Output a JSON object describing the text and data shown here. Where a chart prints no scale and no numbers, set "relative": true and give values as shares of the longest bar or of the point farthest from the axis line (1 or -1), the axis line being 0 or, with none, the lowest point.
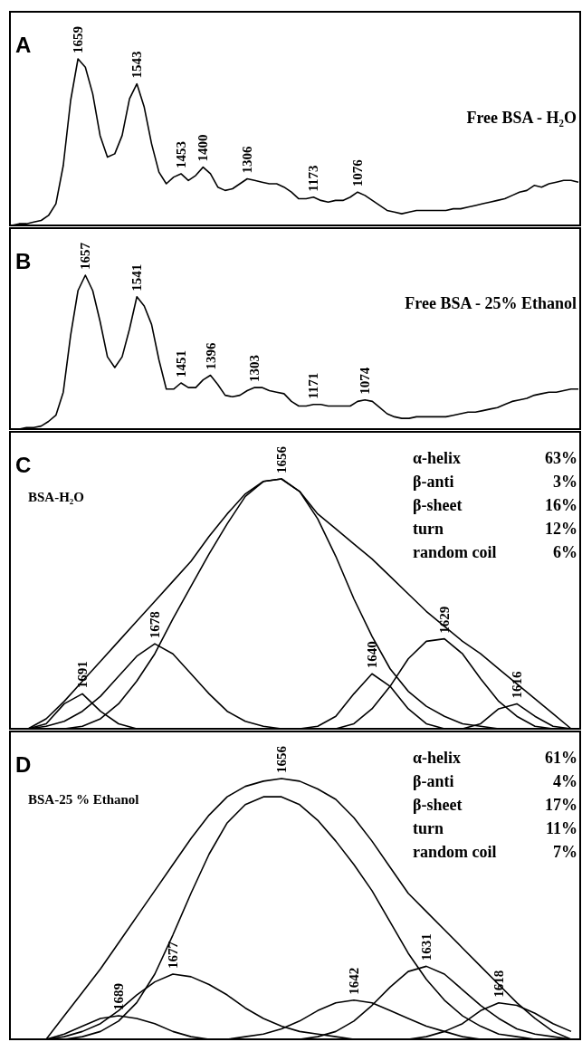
{
  "chart_data": [
    {
      "type": "line",
      "relative": true,
      "tick_labels": false,
      "title": "A",
      "annotations": [
        "Free BSA - H₂O",
        {
          "text": "1659",
          "y": 1.0
        },
        {
          "text": "1543",
          "y": 0.85
        },
        {
          "text": "1453",
          "y": 0.31
        },
        {
          "text": "1400",
          "y": 0.35
        },
        {
          "text": "1306",
          "y": 0.28
        },
        {
          "text": "1173",
          "y": 0.17
        },
        {
          "text": "1076",
          "y": 0.2
        }
      ],
      "categories": [
        null,
        null,
        null,
        null,
        null,
        null,
        null,
        null,
        null,
        null,
        null,
        null,
        null,
        null,
        null,
        null,
        null,
        null,
        null,
        null,
        null,
        null,
        null,
        null,
        null,
        null,
        null,
        null,
        null,
        null,
        null,
        null,
        null,
        null,
        null,
        null,
        null,
        null,
        null,
        null,
        null,
        null,
        null,
        null,
        null,
        null,
        null,
        null,
        null,
        null,
        null,
        null,
        null,
        null,
        null,
        null,
        null,
        null,
        null,
        null,
        null,
        null,
        null,
        null,
        null,
        null,
        null,
        null,
        null,
        null,
        null,
        null,
        null,
        null,
        null,
        null,
        null,
        null
      ],
      "series": [
        {
          "color": "#000000",
          "values": [
            0,
            0.01,
            0.01,
            0.02,
            0.03,
            0.06,
            0.13,
            0.36,
            0.75,
            1.0,
            0.95,
            0.79,
            0.54,
            0.41,
            0.43,
            0.54,
            0.76,
            0.85,
            0.71,
            0.49,
            0.32,
            0.25,
            0.29,
            0.31,
            0.27,
            0.3,
            0.35,
            0.31,
            0.23,
            0.21,
            0.22,
            0.25,
            0.28,
            0.27,
            0.26,
            0.25,
            0.25,
            0.23,
            0.2,
            0.16,
            0.16,
            0.17,
            0.15,
            0.14,
            0.15,
            0.15,
            0.17,
            0.2,
            0.18,
            0.15,
            0.12,
            0.09,
            0.08,
            0.07,
            0.08,
            0.09,
            0.09,
            0.09,
            0.09,
            0.09,
            0.1,
            0.1,
            0.11,
            0.12,
            0.13,
            0.14,
            0.15,
            0.16,
            0.18,
            0.2,
            0.21,
            0.24,
            0.23,
            0.25,
            0.26,
            0.27,
            0.27,
            0.26
          ]
        }
      ]
    },
    {
      "type": "line",
      "relative": true,
      "tick_labels": false,
      "title": "B",
      "annotations": [
        "Free BSA - 25% Ethanol",
        {
          "text": "1657",
          "y": 1.0
        },
        {
          "text": "1541",
          "y": 0.86
        },
        {
          "text": "1451",
          "y": 0.3
        },
        {
          "text": "1396",
          "y": 0.35
        },
        {
          "text": "1303",
          "y": 0.27
        },
        {
          "text": "1171",
          "y": 0.16
        },
        {
          "text": "1074",
          "y": 0.19
        }
      ],
      "categories": [
        null,
        null,
        null,
        null,
        null,
        null,
        null,
        null,
        null,
        null,
        null,
        null,
        null,
        null,
        null,
        null,
        null,
        null,
        null,
        null,
        null,
        null,
        null,
        null,
        null,
        null,
        null,
        null,
        null,
        null,
        null,
        null,
        null,
        null,
        null,
        null,
        null,
        null,
        null,
        null,
        null,
        null,
        null,
        null,
        null,
        null,
        null,
        null,
        null,
        null,
        null,
        null,
        null,
        null,
        null,
        null,
        null,
        null,
        null,
        null,
        null,
        null,
        null,
        null,
        null,
        null,
        null,
        null,
        null,
        null,
        null,
        null,
        null,
        null,
        null,
        null,
        null,
        null
      ],
      "series": [
        {
          "color": "#000000",
          "values": [
            0,
            0.0,
            0.01,
            0.01,
            0.02,
            0.05,
            0.09,
            0.24,
            0.61,
            0.9,
            1.0,
            0.9,
            0.7,
            0.47,
            0.4,
            0.47,
            0.65,
            0.86,
            0.8,
            0.68,
            0.45,
            0.26,
            0.26,
            0.3,
            0.27,
            0.27,
            0.32,
            0.35,
            0.29,
            0.22,
            0.21,
            0.22,
            0.25,
            0.27,
            0.27,
            0.25,
            0.24,
            0.23,
            0.18,
            0.15,
            0.15,
            0.16,
            0.16,
            0.15,
            0.15,
            0.15,
            0.15,
            0.18,
            0.19,
            0.18,
            0.14,
            0.1,
            0.08,
            0.07,
            0.07,
            0.08,
            0.08,
            0.08,
            0.08,
            0.08,
            0.09,
            0.1,
            0.11,
            0.11,
            0.12,
            0.13,
            0.14,
            0.16,
            0.18,
            0.19,
            0.2,
            0.22,
            0.23,
            0.24,
            0.24,
            0.25,
            0.26,
            0.26
          ]
        }
      ]
    },
    {
      "type": "line",
      "relative": true,
      "tick_labels": false,
      "title": "C",
      "annotations": [
        "BSA-H₂O",
        "α-helix",
        "63%",
        "β-anti",
        "3%",
        "β-sheet",
        "16%",
        "turn",
        "12%",
        "random coil",
        "6%",
        {
          "text": "1656",
          "y": 1.0
        },
        {
          "text": "1691",
          "y": 0.14
        },
        {
          "text": "1678",
          "y": 0.34
        },
        {
          "text": "1640",
          "y": 0.22
        },
        {
          "text": "1629",
          "y": 0.36
        },
        {
          "text": "1616",
          "y": 0.1
        }
      ],
      "categories": [
        null,
        null,
        null,
        null,
        null,
        null,
        null,
        null,
        null,
        null,
        null,
        null,
        null,
        null,
        null,
        null,
        null,
        null,
        null,
        null,
        null,
        null,
        null,
        null,
        null,
        null,
        null,
        null,
        null,
        null,
        null
      ],
      "series": [
        {
          "color": "#000000",
          "values": [
            0,
            0.04,
            0.11,
            0.19,
            0.27,
            0.35,
            0.43,
            0.51,
            0.59,
            0.67,
            0.77,
            0.86,
            0.94,
            0.99,
            1.0,
            0.95,
            0.86,
            0.8,
            0.74,
            0.68,
            0.61,
            0.54,
            0.47,
            0.41,
            0.35,
            0.3,
            0.24,
            0.18,
            0.12,
            0.06,
            0
          ]
        },
        {
          "color": "#000000",
          "values": [
            null,
            null,
            0,
            0.01,
            0.04,
            0.1,
            0.19,
            0.3,
            0.44,
            0.57,
            0.7,
            0.82,
            0.93,
            0.99,
            1.0,
            0.95,
            0.84,
            0.69,
            0.52,
            0.37,
            0.24,
            0.15,
            0.09,
            0.05,
            0.02,
            0.01,
            0,
            null,
            null,
            null,
            null
          ]
        },
        {
          "color": "#000000",
          "values": [
            0,
            0.02,
            0.1,
            0.14,
            0.07,
            0.02,
            0,
            null,
            null,
            null,
            null,
            null,
            null,
            null,
            null,
            null,
            null,
            null,
            null,
            null,
            null,
            null,
            null,
            null,
            null,
            null,
            null,
            null,
            null,
            null,
            null
          ]
        },
        {
          "color": "#000000",
          "values": [
            0,
            0.01,
            0.03,
            0.07,
            0.13,
            0.21,
            0.29,
            0.34,
            0.3,
            0.22,
            0.14,
            0.07,
            0.03,
            0.01,
            0,
            null,
            null,
            null,
            null,
            null,
            null,
            null,
            null,
            null,
            null,
            null,
            null,
            null,
            null,
            null,
            null
          ]
        },
        {
          "color": "#000000",
          "values": [
            null,
            null,
            null,
            null,
            null,
            null,
            null,
            null,
            null,
            null,
            null,
            null,
            null,
            null,
            null,
            0,
            0.01,
            0.05,
            0.14,
            0.22,
            0.17,
            0.08,
            0.02,
            0,
            null,
            null,
            null,
            null,
            null,
            null,
            null
          ]
        },
        {
          "color": "#000000",
          "values": [
            null,
            null,
            null,
            null,
            null,
            null,
            null,
            null,
            null,
            null,
            null,
            null,
            null,
            null,
            null,
            null,
            null,
            0,
            0.02,
            0.08,
            0.17,
            0.28,
            0.35,
            0.36,
            0.3,
            0.2,
            0.11,
            0.05,
            0.01,
            0,
            null
          ]
        },
        {
          "color": "#000000",
          "values": [
            null,
            null,
            null,
            null,
            null,
            null,
            null,
            null,
            null,
            null,
            null,
            null,
            null,
            null,
            null,
            null,
            null,
            null,
            null,
            null,
            null,
            null,
            null,
            null,
            0,
            0.02,
            0.08,
            0.1,
            0.05,
            0.01,
            0
          ]
        }
      ]
    },
    {
      "type": "line",
      "relative": true,
      "tick_labels": false,
      "title": "D",
      "annotations": [
        "BSA-25 % Ethanol",
        "α-helix",
        "61%",
        "β-anti",
        "4%",
        "β-sheet",
        "17%",
        "turn",
        "11%",
        "random coil",
        "7%",
        {
          "text": "1656",
          "y": 1.0
        },
        {
          "text": "1689",
          "y": 0.09
        },
        {
          "text": "1677",
          "y": 0.25
        },
        {
          "text": "1642",
          "y": 0.15
        },
        {
          "text": "1631",
          "y": 0.28
        },
        {
          "text": "1618",
          "y": 0.14
        }
      ],
      "categories": [
        null,
        null,
        null,
        null,
        null,
        null,
        null,
        null,
        null,
        null,
        null,
        null,
        null,
        null,
        null,
        null,
        null,
        null,
        null,
        null,
        null,
        null,
        null,
        null,
        null,
        null,
        null,
        null,
        null,
        null
      ],
      "series": [
        {
          "color": "#000000",
          "values": [
            0,
            0.09,
            0.18,
            0.27,
            0.37,
            0.47,
            0.57,
            0.67,
            0.77,
            0.86,
            0.93,
            0.97,
            0.99,
            1.0,
            0.99,
            0.96,
            0.92,
            0.85,
            0.76,
            0.66,
            0.56,
            0.49,
            0.42,
            0.35,
            0.28,
            0.21,
            0.14,
            0.08,
            0.03,
            0
          ]
        },
        {
          "color": "#000000",
          "values": [
            null,
            0,
            0.01,
            0.03,
            0.07,
            0.14,
            0.25,
            0.4,
            0.56,
            0.71,
            0.83,
            0.9,
            0.93,
            0.93,
            0.9,
            0.84,
            0.76,
            0.67,
            0.57,
            0.45,
            0.33,
            0.23,
            0.15,
            0.09,
            0.05,
            0.02,
            0.01,
            0,
            null,
            null
          ]
        },
        {
          "color": "#000000",
          "values": [
            0,
            0.02,
            0.05,
            0.08,
            0.09,
            0.08,
            0.06,
            0.03,
            0.01,
            0,
            null,
            null,
            null,
            null,
            null,
            null,
            null,
            null,
            null,
            null,
            null,
            null,
            null,
            null,
            null,
            null,
            null,
            null,
            null,
            null
          ]
        },
        {
          "color": "#000000",
          "values": [
            0,
            0.01,
            0.03,
            0.06,
            0.11,
            0.17,
            0.22,
            0.25,
            0.24,
            0.21,
            0.17,
            0.12,
            0.08,
            0.05,
            0.03,
            0.02,
            0.01,
            0,
            null,
            null,
            null,
            null,
            null,
            null,
            null,
            null,
            null,
            null,
            null,
            null
          ]
        },
        {
          "color": "#000000",
          "values": [
            null,
            null,
            null,
            null,
            null,
            null,
            null,
            null,
            null,
            null,
            0,
            0.01,
            0.02,
            0.04,
            0.07,
            0.11,
            0.14,
            0.15,
            0.14,
            0.11,
            0.08,
            0.05,
            0.03,
            0.01,
            0,
            null,
            null,
            null,
            null,
            null
          ]
        },
        {
          "color": "#000000",
          "values": [
            null,
            null,
            null,
            null,
            null,
            null,
            null,
            null,
            null,
            null,
            null,
            null,
            null,
            null,
            0,
            0.01,
            0.03,
            0.07,
            0.13,
            0.2,
            0.26,
            0.28,
            0.25,
            0.19,
            0.13,
            0.08,
            0.04,
            0.02,
            0.01,
            0
          ]
        },
        {
          "color": "#000000",
          "values": [
            null,
            null,
            null,
            null,
            null,
            null,
            null,
            null,
            null,
            null,
            null,
            null,
            null,
            null,
            null,
            null,
            null,
            null,
            null,
            null,
            0,
            0.01,
            0.03,
            0.06,
            0.11,
            0.14,
            0.13,
            0.1,
            0.06,
            0.03
          ]
        }
      ]
    }
  ]
}
